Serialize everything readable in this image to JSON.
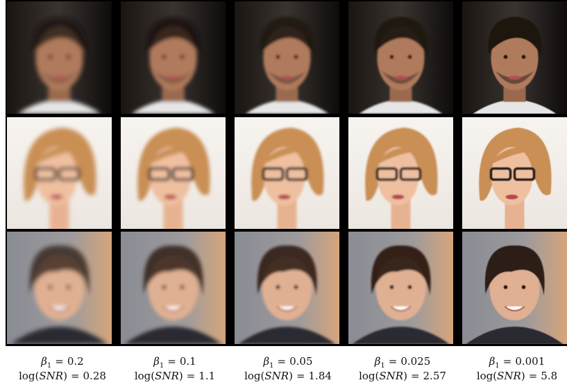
{
  "symbols": {
    "beta": "β",
    "beta_sub": "1",
    "equals": "=",
    "log_open": "log(",
    "snr": "SNR",
    "log_close": ")"
  },
  "columns": [
    {
      "beta": "0.2",
      "log_snr": "0.28"
    },
    {
      "beta": "0.1",
      "log_snr": "1.1"
    },
    {
      "beta": "0.05",
      "log_snr": "1.84"
    },
    {
      "beta": "0.025",
      "log_snr": "2.57"
    },
    {
      "beta": "0.001",
      "log_snr": "5.8"
    }
  ]
}
